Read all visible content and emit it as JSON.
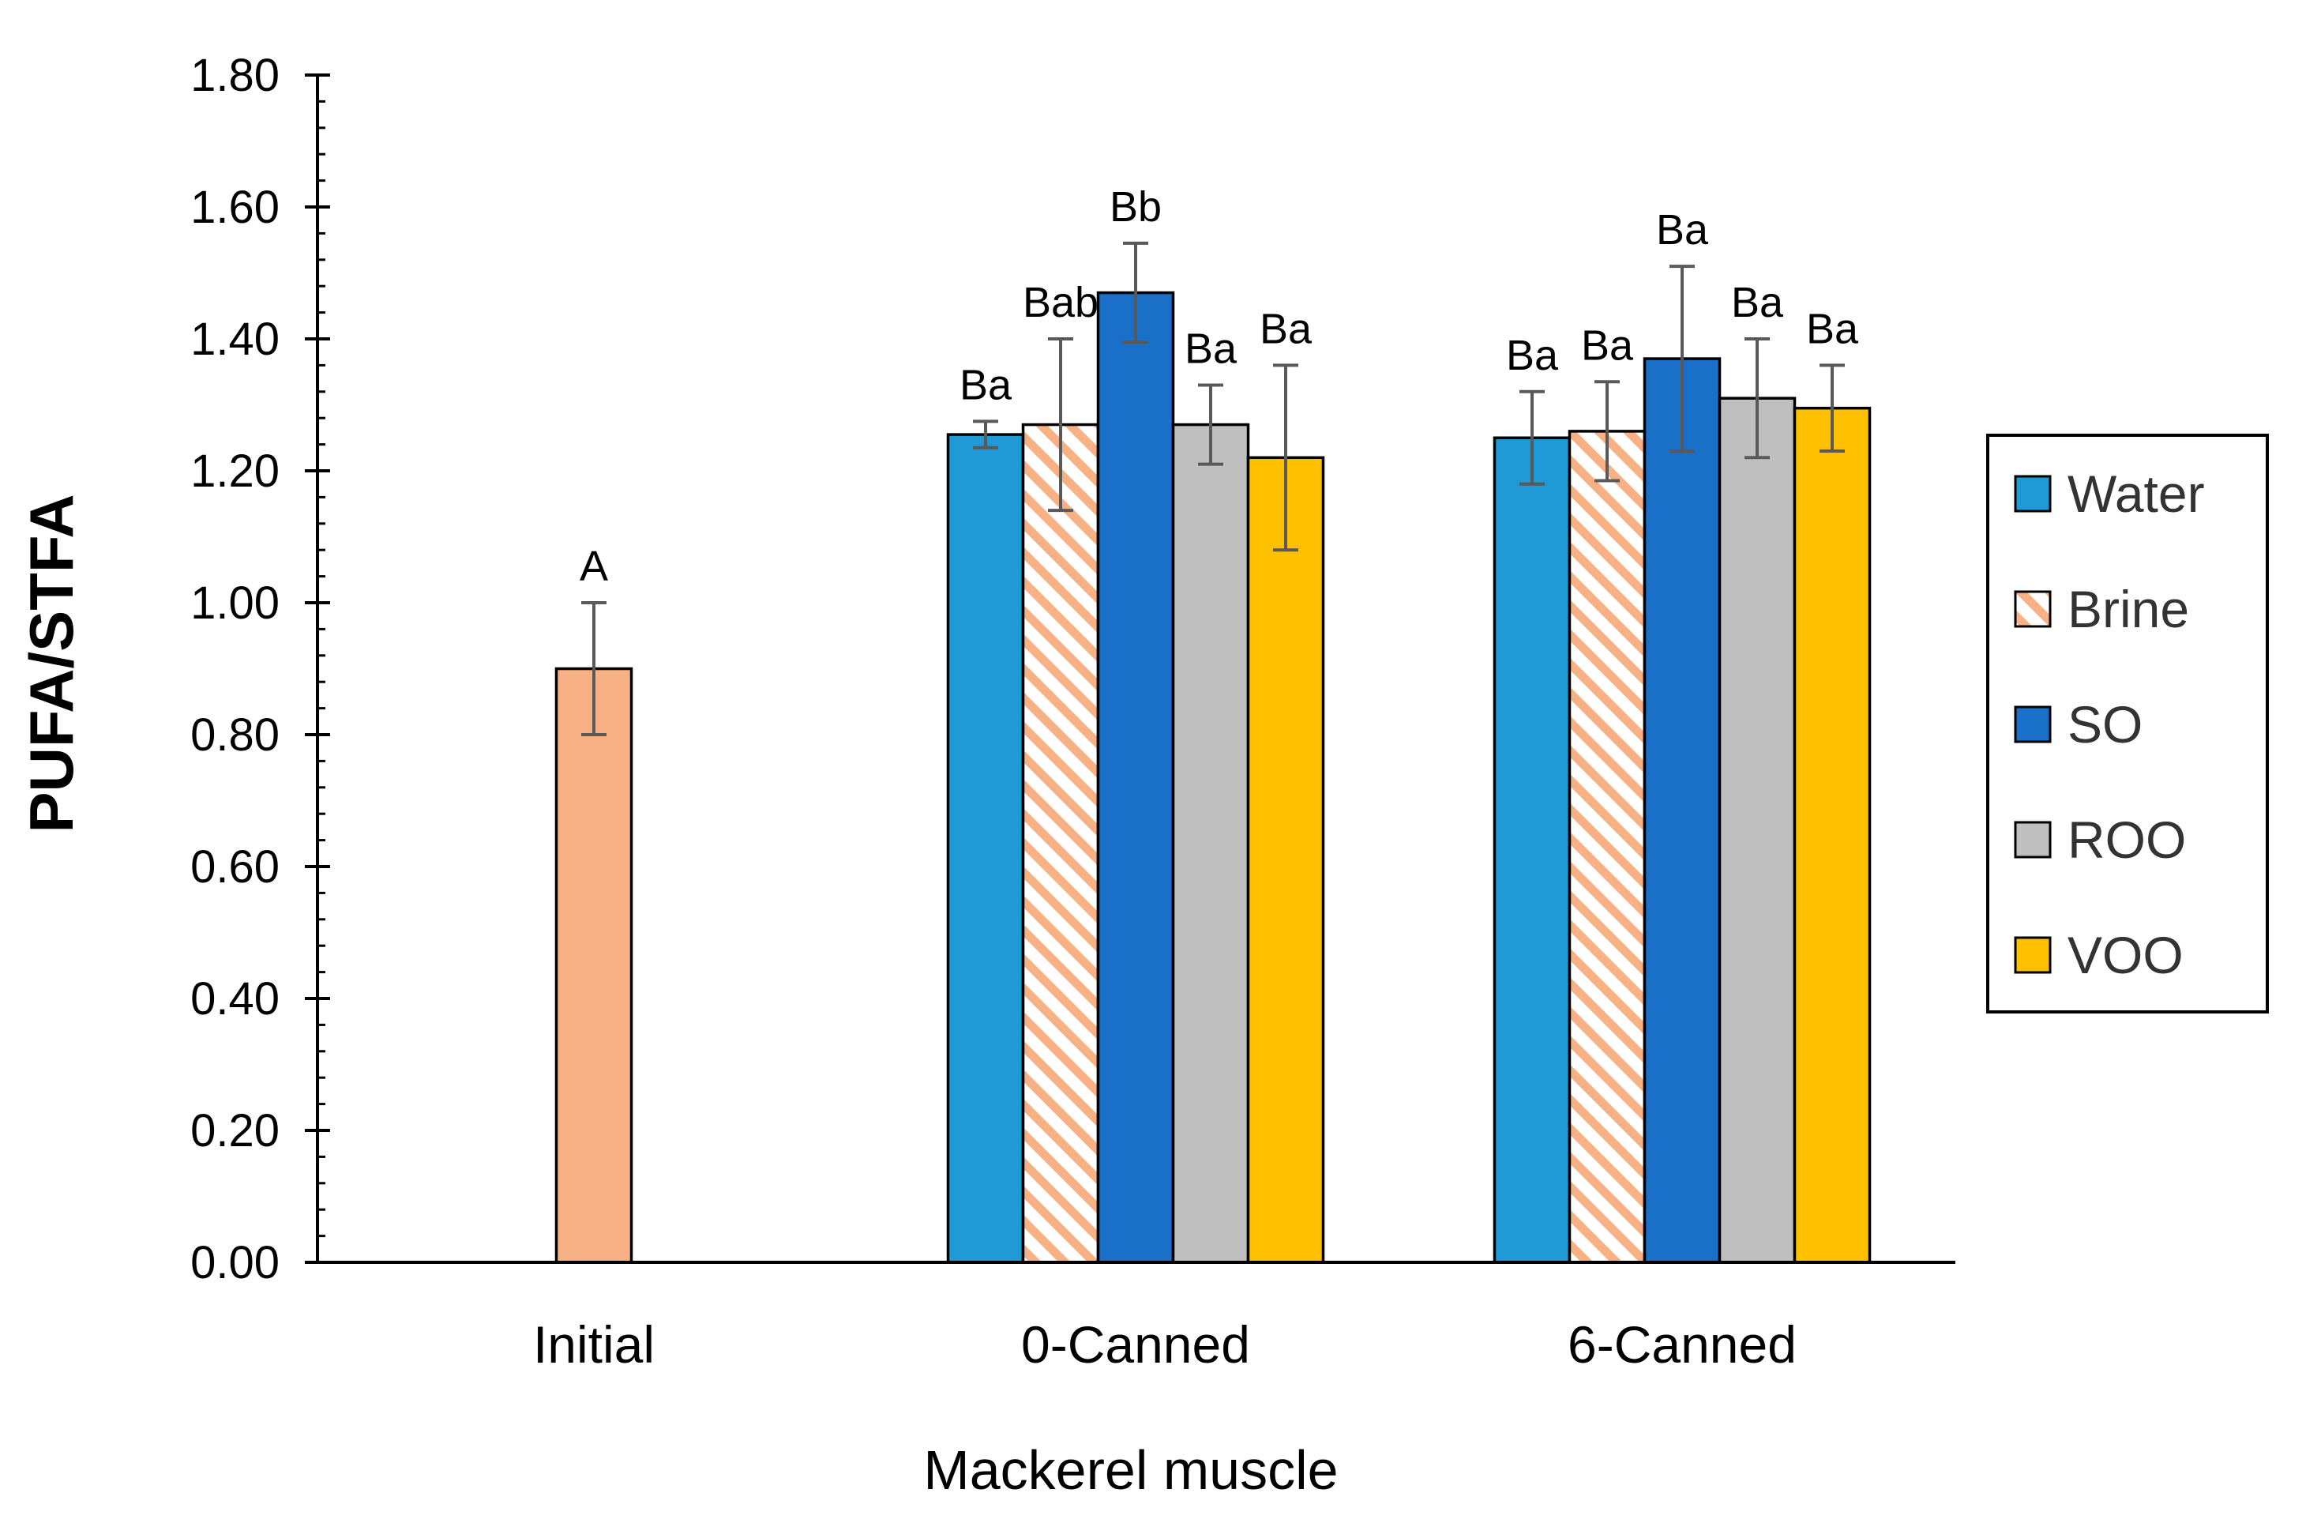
{
  "chart_data": {
    "type": "bar",
    "title": "",
    "xlabel": "Mackerel muscle",
    "ylabel": "PUFA/STFA",
    "ylim": [
      0,
      1.8
    ],
    "yticks": [
      "0.00",
      "0.20",
      "0.40",
      "0.60",
      "0.80",
      "1.00",
      "1.20",
      "1.40",
      "1.60",
      "1.80"
    ],
    "grid": false,
    "legend_position": "right",
    "categories": [
      "Initial",
      "0-Canned",
      "6-Canned"
    ],
    "initial": {
      "name": "Initial",
      "value": 0.9,
      "error": 0.1,
      "label": "A",
      "color": "#F8B184"
    },
    "series": [
      {
        "name": "Water",
        "color": "#1F9AD6",
        "pattern": "solid",
        "values": [
          null,
          1.255,
          1.25
        ],
        "errors": [
          null,
          0.02,
          0.07
        ],
        "labels": [
          "",
          "Ba",
          "Ba"
        ]
      },
      {
        "name": "Brine",
        "color": "#F8B184",
        "pattern": "hatch",
        "values": [
          null,
          1.27,
          1.26
        ],
        "errors": [
          null,
          0.13,
          0.075
        ],
        "labels": [
          "",
          "Bab",
          "Ba"
        ]
      },
      {
        "name": "SO",
        "color": "#1A6FC8",
        "pattern": "solid",
        "values": [
          null,
          1.47,
          1.37
        ],
        "errors": [
          null,
          0.075,
          0.14
        ],
        "labels": [
          "",
          "Bb",
          "Ba"
        ]
      },
      {
        "name": "ROO",
        "color": "#BFBFBF",
        "pattern": "solid",
        "values": [
          null,
          1.27,
          1.31
        ],
        "errors": [
          null,
          0.06,
          0.09
        ],
        "labels": [
          "",
          "Ba",
          "Ba"
        ]
      },
      {
        "name": "VOO",
        "color": "#FFC000",
        "pattern": "solid",
        "values": [
          null,
          1.22,
          1.295
        ],
        "errors": [
          null,
          0.14,
          0.065
        ],
        "labels": [
          "",
          "Ba",
          "Ba"
        ]
      }
    ]
  }
}
